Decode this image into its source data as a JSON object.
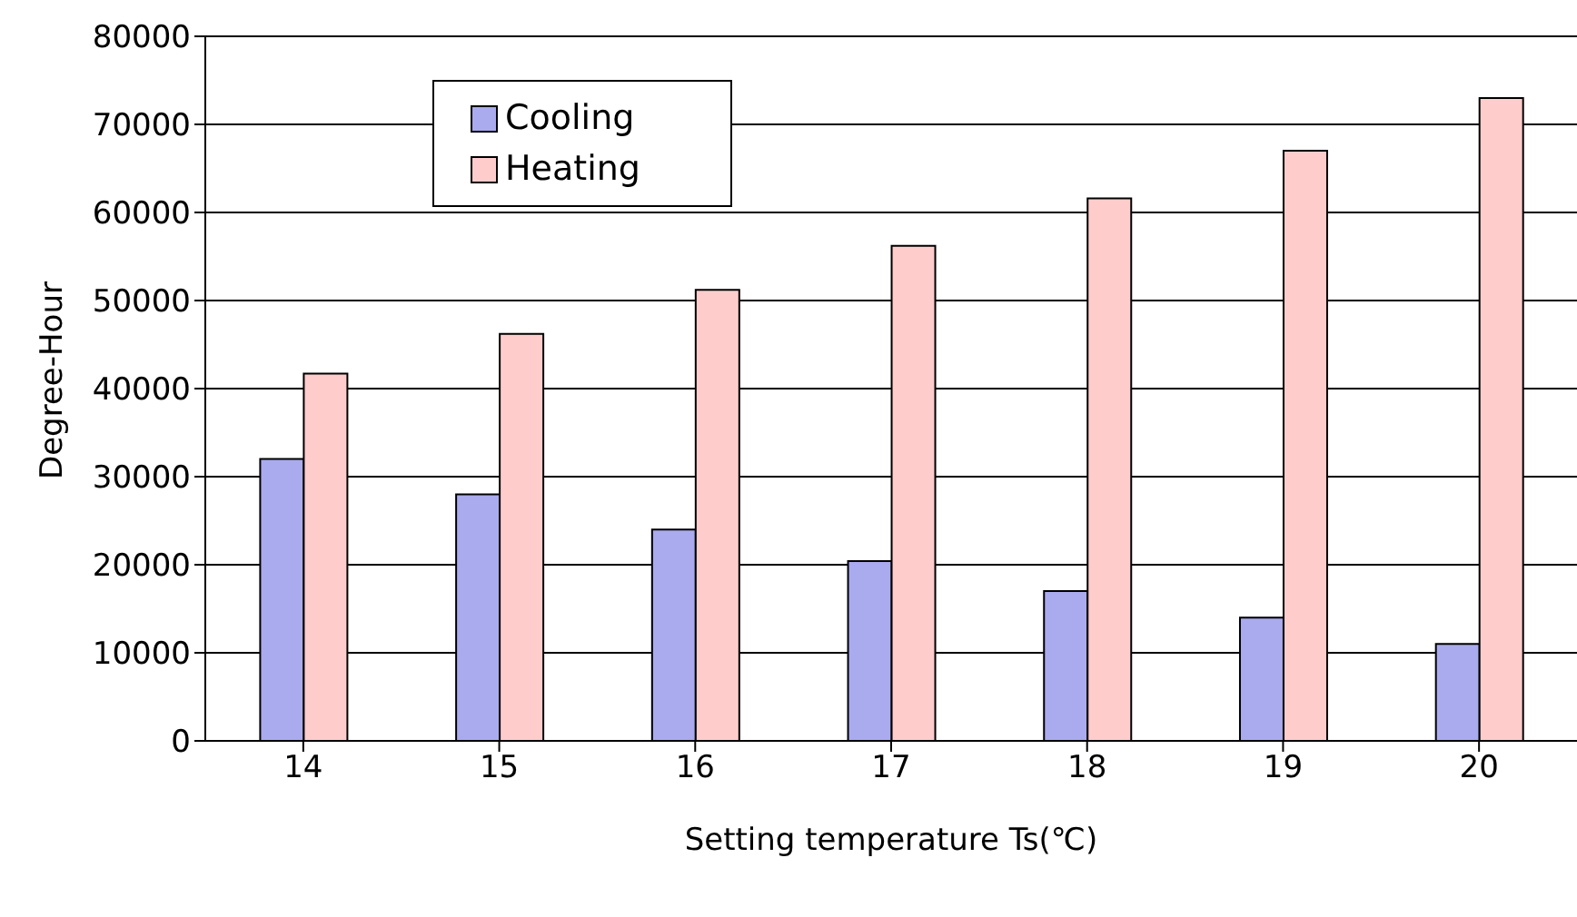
{
  "chart_data": {
    "type": "bar",
    "xlabel": "Setting temperature Ts(℃)",
    "ylabel": "Degree-Hour",
    "categories": [
      "14",
      "15",
      "16",
      "17",
      "18",
      "19",
      "20"
    ],
    "series": [
      {
        "name": "Cooling",
        "color": "#aaaaee",
        "values": [
          32000,
          28000,
          24000,
          20400,
          17000,
          14000,
          11000
        ]
      },
      {
        "name": "Heating",
        "color": "#ffcccc",
        "values": [
          41700,
          46200,
          51200,
          56200,
          61600,
          67000,
          73000
        ]
      }
    ],
    "ylim": [
      0,
      80000
    ],
    "yticks": [
      0,
      10000,
      20000,
      30000,
      40000,
      50000,
      60000,
      70000,
      80000
    ],
    "grid": "y",
    "legend": "top left"
  }
}
